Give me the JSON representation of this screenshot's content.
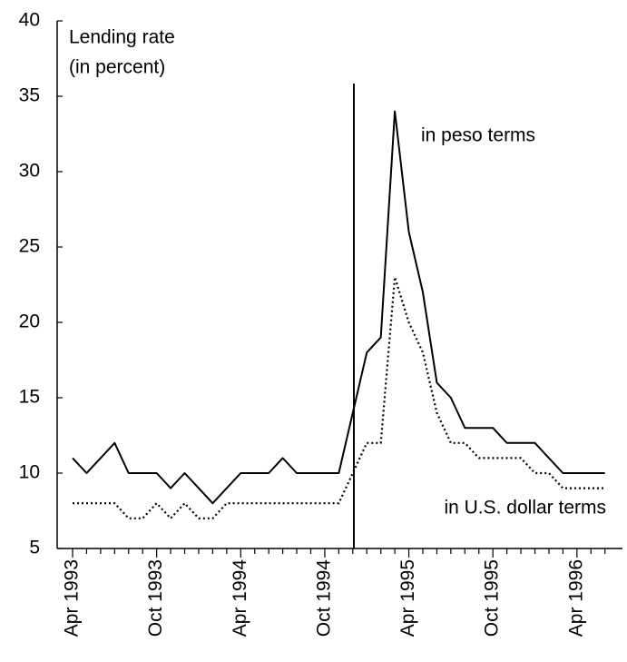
{
  "chart_data": {
    "type": "line",
    "y_label_lines": [
      "Lending rate",
      "(in percent)"
    ],
    "categories": [
      "Apr 1993",
      null,
      null,
      null,
      null,
      null,
      "Oct 1993",
      null,
      null,
      null,
      null,
      null,
      "Apr 1994",
      null,
      null,
      null,
      null,
      null,
      "Oct 1994",
      null,
      null,
      null,
      null,
      null,
      "Apr 1995",
      null,
      null,
      null,
      null,
      null,
      "Oct 1995",
      null,
      null,
      null,
      null,
      null,
      "Apr 1996",
      null,
      null
    ],
    "series": [
      {
        "name": "in peso terms",
        "color": "#000000",
        "style": "solid",
        "values": [
          11,
          10,
          11,
          12,
          10,
          10,
          10,
          9,
          10,
          9,
          8,
          9,
          10,
          10,
          10,
          11,
          10,
          10,
          10,
          10,
          14,
          18,
          19,
          34,
          26,
          22,
          16,
          15,
          13,
          13,
          13,
          12,
          12,
          12,
          11,
          10,
          10,
          10,
          10
        ]
      },
      {
        "name": "in U.S. dollar terms",
        "color": "#000000",
        "style": "dotted",
        "values": [
          8,
          8,
          8,
          8,
          7,
          7,
          8,
          7,
          8,
          7,
          7,
          8,
          8,
          8,
          8,
          8,
          8,
          8,
          8,
          8,
          10,
          12,
          12,
          23,
          20,
          18,
          14,
          12,
          12,
          11,
          11,
          11,
          11,
          10,
          10,
          9,
          9,
          9,
          9
        ]
      }
    ],
    "ylim": [
      5,
      40
    ],
    "yticks": [
      5,
      10,
      15,
      20,
      25,
      30,
      35,
      40
    ],
    "grid": false
  }
}
